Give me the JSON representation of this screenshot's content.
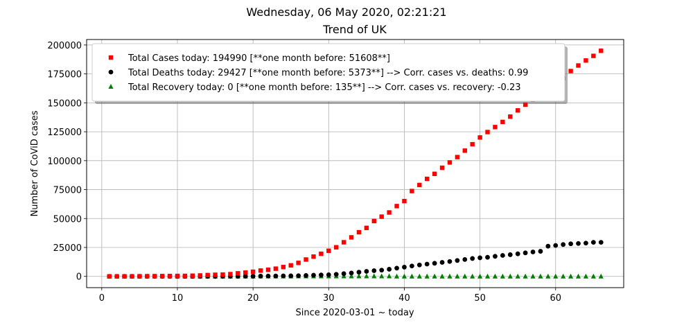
{
  "chart_data": {
    "type": "scatter",
    "suptitle": "Wednesday, 06 May 2020, 02:21:21",
    "title": "Trend of UK",
    "xlabel": "Since 2020-03-01 ~ today",
    "ylabel": "Number of CoViD cases",
    "xlim": [
      -2,
      69
    ],
    "ylim": [
      -9750,
      204740
    ],
    "xticks": [
      0,
      10,
      20,
      30,
      40,
      50,
      60
    ],
    "yticks": [
      0,
      25000,
      50000,
      75000,
      100000,
      125000,
      150000,
      175000,
      200000
    ],
    "grid": true,
    "legend_position": "top-left",
    "x": [
      1,
      2,
      3,
      4,
      5,
      6,
      7,
      8,
      9,
      10,
      11,
      12,
      13,
      14,
      15,
      16,
      17,
      18,
      19,
      20,
      21,
      22,
      23,
      24,
      25,
      26,
      27,
      28,
      29,
      30,
      31,
      32,
      33,
      34,
      35,
      36,
      37,
      38,
      39,
      40,
      41,
      42,
      43,
      44,
      45,
      46,
      47,
      48,
      49,
      50,
      51,
      52,
      53,
      54,
      55,
      56,
      57,
      58,
      59,
      60,
      61,
      62,
      63,
      64,
      65,
      66
    ],
    "series": [
      {
        "name": "Total Cases today: 194990 [**one month before: 51608**]",
        "color": "#ff0000",
        "marker": "square",
        "values": [
          36,
          40,
          51,
          85,
          116,
          164,
          209,
          278,
          321,
          373,
          460,
          594,
          798,
          1140,
          1372,
          1543,
          1950,
          2630,
          3269,
          3983,
          5018,
          5683,
          6650,
          8077,
          9529,
          11658,
          14543,
          17089,
          19522,
          22141,
          25150,
          29474,
          33718,
          38168,
          41903,
          47806,
          51608,
          55242,
          60733,
          65077,
          73758,
          78991,
          84279,
          88621,
          93873,
          98476,
          103093,
          108692,
          114217,
          120067,
          124743,
          129044,
          133495,
          138078,
          143464,
          148377,
          152840,
          157149,
          161145,
          165221,
          171253,
          177454,
          182260,
          186599,
          190584,
          194990
        ]
      },
      {
        "name": "Total Deaths today: 29427 [**one month before: 5373**] --> Corr. cases vs. deaths: 0.99",
        "color": "#000000",
        "marker": "circle",
        "values": [
          0,
          0,
          0,
          0,
          1,
          2,
          2,
          3,
          4,
          6,
          8,
          10,
          11,
          21,
          35,
          55,
          71,
          104,
          144,
          177,
          233,
          281,
          335,
          422,
          465,
          578,
          759,
          1019,
          1228,
          1408,
          1789,
          2352,
          2921,
          3605,
          4313,
          4934,
          5373,
          6159,
          7097,
          7978,
          8958,
          9875,
          10612,
          11329,
          12107,
          12868,
          13729,
          14576,
          15464,
          16060,
          16509,
          17337,
          18100,
          18738,
          19506,
          20319,
          21092,
          21678,
          26097,
          26711,
          27510,
          28131,
          28446,
          28734,
          29427,
          29427
        ]
      },
      {
        "name": "Total Recovery today: 0 [**one month before: 135**] --> Corr. cases vs. recovery: -0.23",
        "color": "#008000",
        "marker": "triangle",
        "values": [
          8,
          8,
          8,
          8,
          18,
          18,
          18,
          18,
          18,
          18,
          18,
          18,
          18,
          18,
          18,
          18,
          18,
          18,
          18,
          18,
          52,
          52,
          52,
          65,
          65,
          135,
          135,
          135,
          135,
          135,
          135,
          135,
          135,
          135,
          135,
          135,
          135,
          135,
          0,
          0,
          0,
          0,
          0,
          0,
          0,
          0,
          0,
          0,
          0,
          0,
          0,
          0,
          0,
          0,
          0,
          0,
          0,
          0,
          0,
          0,
          0,
          0,
          0,
          0,
          0,
          0
        ]
      }
    ]
  }
}
